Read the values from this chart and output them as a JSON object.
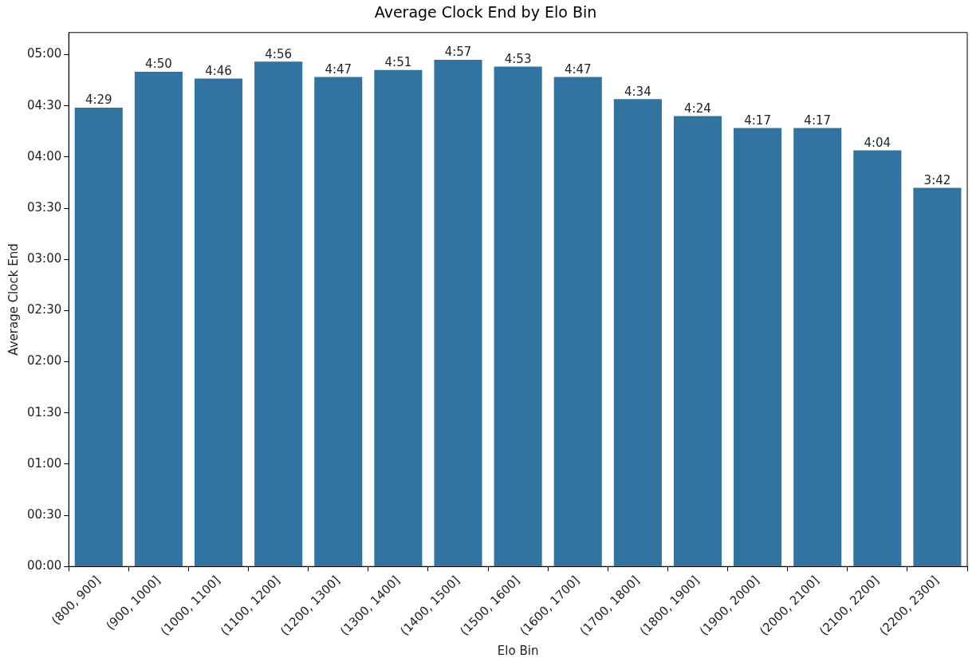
{
  "chart_data": {
    "type": "bar",
    "title": "Average Clock End by Elo Bin",
    "xlabel": "Elo Bin",
    "ylabel": "Average Clock End",
    "categories": [
      "(800, 900]",
      "(900, 1000]",
      "(1000, 1100]",
      "(1100, 1200]",
      "(1200, 1300]",
      "(1300, 1400]",
      "(1400, 1500]",
      "(1500, 1600]",
      "(1600, 1700]",
      "(1700, 1800]",
      "(1800, 1900]",
      "(1900, 2000]",
      "(2000, 2100]",
      "(2100, 2200]",
      "(2200, 2300]"
    ],
    "values": [
      269,
      290,
      286,
      296,
      287,
      291,
      297,
      293,
      287,
      274,
      264,
      257,
      257,
      244,
      222
    ],
    "value_labels": [
      "4:29",
      "4:50",
      "4:46",
      "4:56",
      "4:47",
      "4:51",
      "4:57",
      "4:53",
      "4:47",
      "4:34",
      "4:24",
      "4:17",
      "4:17",
      "4:04",
      "3:42"
    ],
    "color": "#3274a1",
    "ylim": [
      0,
      313
    ],
    "yticks": [
      {
        "value": 0,
        "label": "00:00"
      },
      {
        "value": 30,
        "label": "00:30"
      },
      {
        "value": 60,
        "label": "01:00"
      },
      {
        "value": 90,
        "label": "01:30"
      },
      {
        "value": 120,
        "label": "02:00"
      },
      {
        "value": 150,
        "label": "02:30"
      },
      {
        "value": 180,
        "label": "03:00"
      },
      {
        "value": 210,
        "label": "03:30"
      },
      {
        "value": 240,
        "label": "04:00"
      },
      {
        "value": 270,
        "label": "04:30"
      },
      {
        "value": 300,
        "label": "05:00"
      }
    ],
    "grid": false,
    "legend": false
  }
}
